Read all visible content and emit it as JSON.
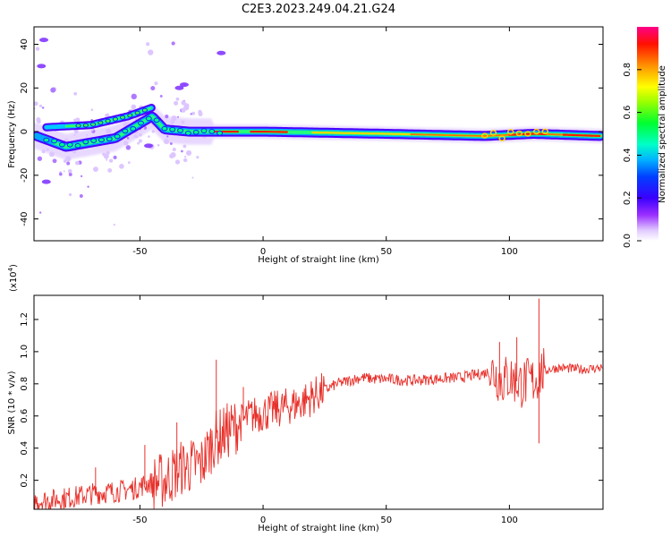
{
  "title": "C2E3.2023.249.04.21.G24",
  "chart_data": [
    {
      "type": "heatmap",
      "title": "C2E3.2023.249.04.21.G24",
      "xlabel": "Height of straight line (km)",
      "ylabel": "Frequency (Hz)",
      "xlim": [
        -93,
        138
      ],
      "ylim": [
        -50,
        48
      ],
      "x_ticks": [
        "-50",
        "0",
        "50",
        "100"
      ],
      "x_tick_values": [
        -50,
        0,
        50,
        100
      ],
      "y_ticks": [
        "40",
        "20",
        "0",
        "-20",
        "-40"
      ],
      "y_tick_values": [
        40,
        20,
        0,
        -20,
        -40
      ],
      "description_values": {
        "ridge": [
          {
            "x": -92,
            "f": -2
          },
          {
            "x": -80,
            "f": -7
          },
          {
            "x": -60,
            "f": -3
          },
          {
            "x": -45,
            "f": 7
          },
          {
            "x": -40,
            "f": 1
          },
          {
            "x": -30,
            "f": 0
          },
          {
            "x": -20,
            "f": 0
          },
          {
            "x": 0,
            "f": 0
          },
          {
            "x": 50,
            "f": -1
          },
          {
            "x": 90,
            "f": -2
          },
          {
            "x": 110,
            "f": -1
          },
          {
            "x": 137,
            "f": -2
          }
        ],
        "upper_branch": [
          {
            "x": -88,
            "f": 2
          },
          {
            "x": -70,
            "f": 3
          },
          {
            "x": -55,
            "f": 7
          },
          {
            "x": -45,
            "f": 11
          }
        ]
      },
      "colorbar": {
        "label": "Normalized spectral amplitude",
        "range": [
          0,
          1
        ],
        "ticks": [
          "0.0",
          "0.2",
          "0.4",
          "0.6",
          "0.8"
        ],
        "tick_values": [
          0,
          0.2,
          0.4,
          0.6,
          0.8
        ],
        "colormap": [
          "#ffffff",
          "#d6b2ff",
          "#7a00ff",
          "#0000ff",
          "#00a6ff",
          "#00ffd0",
          "#00ff40",
          "#7fff00",
          "#ffff00",
          "#ff9900",
          "#ff0000",
          "#ff0080"
        ]
      }
    },
    {
      "type": "line",
      "xlabel": "Height of straight line (km)",
      "ylabel": "SNR (10 * v/v)",
      "scale_label": "(x10",
      "scale_exponent": "4",
      "scale_suffix": ")",
      "xlim": [
        -93,
        138
      ],
      "ylim": [
        0.02,
        1.35
      ],
      "x_ticks": [
        "-50",
        "0",
        "50",
        "100"
      ],
      "x_tick_values": [
        -50,
        0,
        50,
        100
      ],
      "y_ticks": [
        "0.2",
        "0.4",
        "0.6",
        "0.8",
        "1.0",
        "1.2"
      ],
      "y_tick_values": [
        0.2,
        0.4,
        0.6,
        0.8,
        1.0,
        1.2
      ],
      "series": [
        {
          "name": "SNR",
          "color": "#e8302a",
          "x": [
            -93,
            -85,
            -75,
            -68,
            -60,
            -52,
            -47,
            -40,
            -33,
            -25,
            -20,
            -15,
            -10,
            -5,
            0,
            5,
            10,
            15,
            20,
            25,
            30,
            35,
            40,
            45,
            50,
            60,
            70,
            80,
            88,
            93,
            97,
            100,
            105,
            110,
            113,
            116,
            120,
            130,
            137
          ],
          "y": [
            0.07,
            0.08,
            0.1,
            0.12,
            0.13,
            0.15,
            0.18,
            0.2,
            0.28,
            0.3,
            0.45,
            0.5,
            0.55,
            0.6,
            0.62,
            0.64,
            0.66,
            0.68,
            0.72,
            0.76,
            0.8,
            0.82,
            0.84,
            0.83,
            0.83,
            0.82,
            0.83,
            0.84,
            0.86,
            0.88,
            0.82,
            0.84,
            0.8,
            0.82,
            0.87,
            0.89,
            0.9,
            0.89,
            0.9
          ]
        }
      ],
      "annotations": [
        {
          "x": -68,
          "y": 0.28
        },
        {
          "x": -48,
          "y": 0.42
        },
        {
          "x": -35,
          "y": 0.56
        },
        {
          "x": -19,
          "y": 0.95
        },
        {
          "x": -8,
          "y": 0.78
        },
        {
          "x": 96,
          "y": 1.06
        },
        {
          "x": 103,
          "y": 1.09
        },
        {
          "x": 112,
          "y": 1.33
        },
        {
          "x": 112,
          "y": 0.43
        }
      ]
    }
  ]
}
